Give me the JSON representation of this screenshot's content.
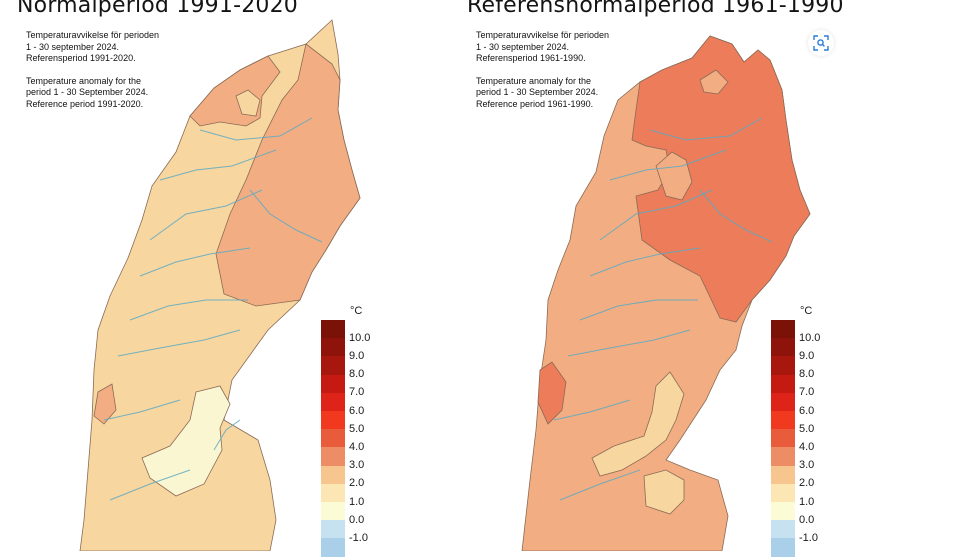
{
  "maps": [
    {
      "heading": "Normalperiod 1991-2020",
      "caption": {
        "sv_line1": "Temperaturavvikelse för perioden",
        "sv_line2": "1 - 30 september 2024.",
        "sv_line3": "Referensperiod 1991-2020.",
        "en_line1": "Temperature anomaly for the",
        "en_line2": "period 1 - 30 September 2024.",
        "en_line3": "Reference period 1991-2020."
      }
    },
    {
      "heading": "Referensnormalperiod 1961-1990",
      "caption": {
        "sv_line1": "Temperaturavvikelse för perioden",
        "sv_line2": "1 - 30 september 2024.",
        "sv_line3": "Referensperiod 1961-1990.",
        "en_line1": "Temperature anomaly for the",
        "en_line2": "period 1 - 30 September 2024.",
        "en_line3": "Reference period 1961-1990."
      }
    }
  ],
  "legend": {
    "unit": "°C",
    "ticks": [
      "10.0",
      "9.0",
      "8.0",
      "7.0",
      "6.0",
      "5.0",
      "4.0",
      "3.0",
      "2.0",
      "1.0",
      "0.0",
      "-1.0"
    ],
    "colors": [
      "#7a1208",
      "#8e140b",
      "#a8170e",
      "#c41a12",
      "#de2418",
      "#f0391f",
      "#e85c3c",
      "#ed8d66",
      "#f6c68e",
      "#fce6b4",
      "#fbfbd5",
      "#c6e1ef",
      "#a9d0e8"
    ]
  },
  "fills": {
    "water": "#5aa9c4",
    "band_0_1": "#fbf6d2",
    "band_1_2": "#f8d6a0",
    "band_2_3": "#f2ae82",
    "band_3_4": "#ec7c5a"
  },
  "icons": {
    "zoom": "zoom-icon"
  }
}
